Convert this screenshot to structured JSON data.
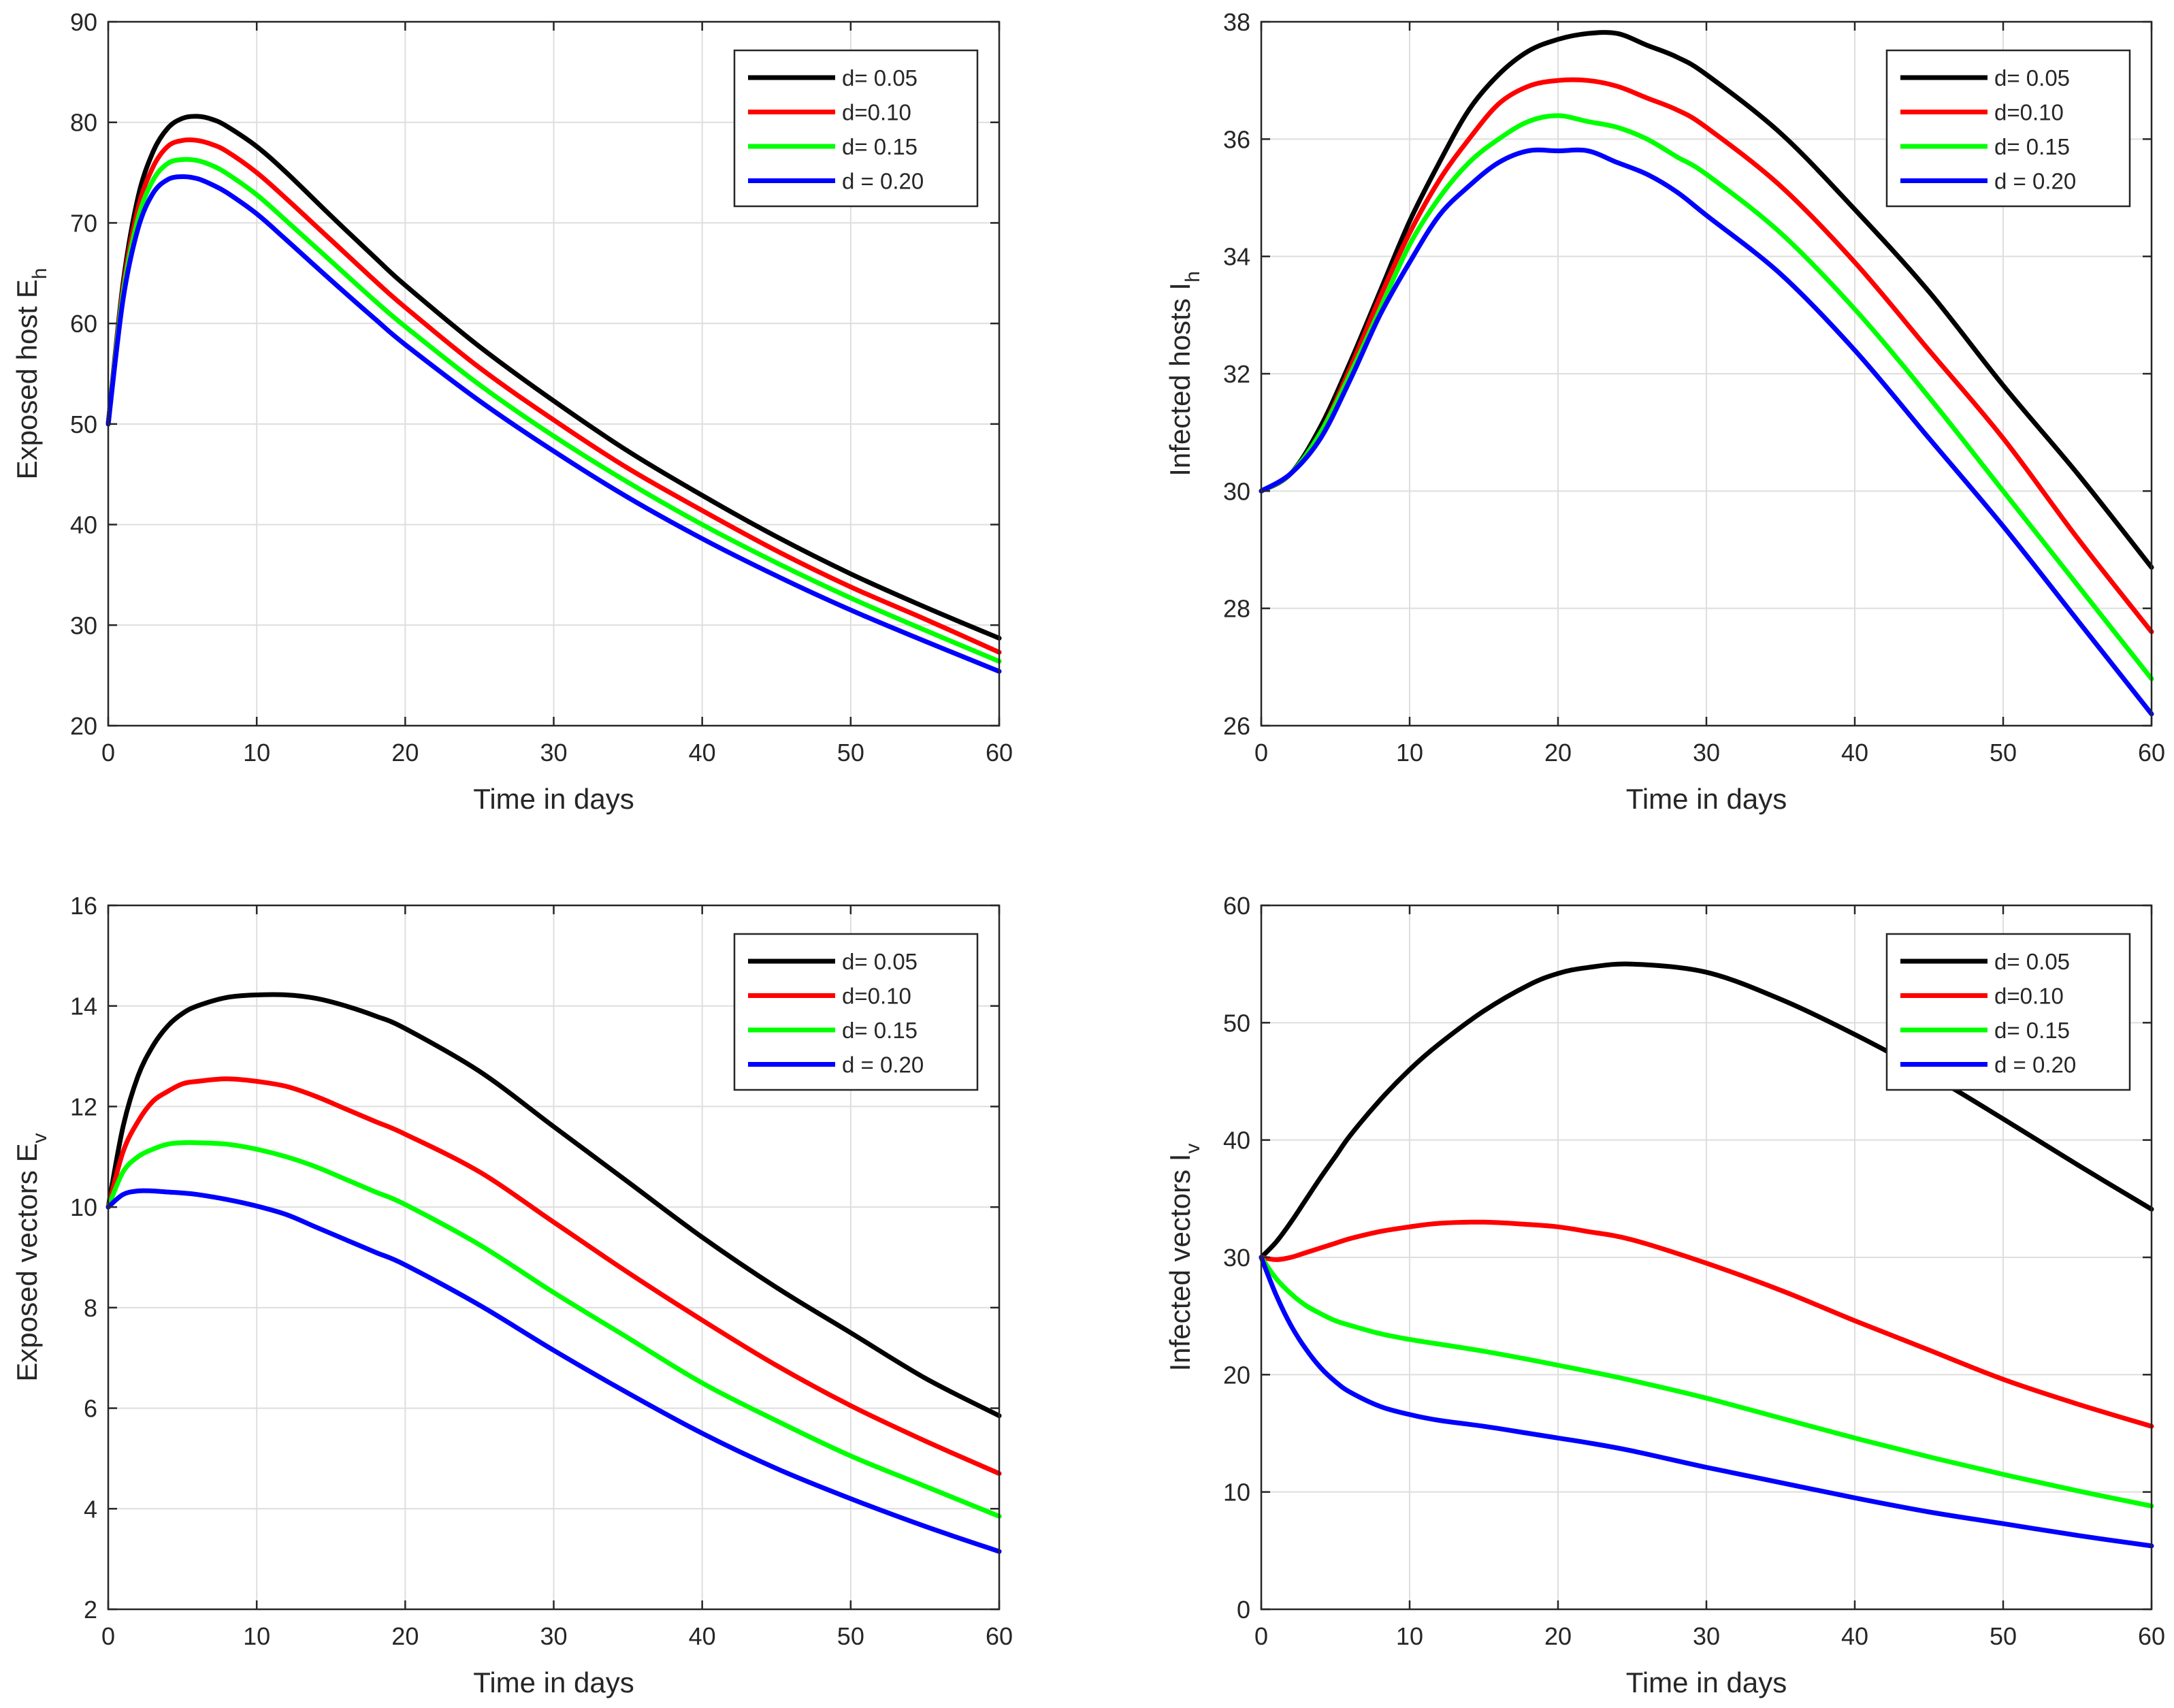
{
  "chart_data": [
    {
      "type": "line",
      "xlabel": "Time in days",
      "ylabel": "Exposed host E",
      "ylabel_sub": "h",
      "xlim": [
        0,
        60
      ],
      "ylim": [
        20,
        90
      ],
      "xticks": [
        0,
        10,
        20,
        30,
        40,
        50,
        60
      ],
      "yticks": [
        20,
        30,
        40,
        50,
        60,
        70,
        80,
        90
      ],
      "grid": true,
      "legend_position": "top-right",
      "x": [
        0,
        1,
        2,
        3,
        4,
        5,
        6,
        7,
        8,
        10,
        12,
        15,
        18,
        20,
        25,
        30,
        35,
        40,
        45,
        50,
        55,
        60
      ],
      "series": [
        {
          "name": "d= 0.05",
          "color": "#000000",
          "values": [
            50,
            64,
            72.5,
            77,
            79.4,
            80.4,
            80.6,
            80.3,
            79.6,
            77.6,
            75,
            70.7,
            66.5,
            63.8,
            57.7,
            52.3,
            47.3,
            42.9,
            38.8,
            35.1,
            31.8,
            28.7
          ]
        },
        {
          "name": "d=0.10",
          "color": "#ff0000",
          "values": [
            50,
            63.5,
            71.4,
            75.5,
            77.6,
            78.2,
            78.2,
            77.8,
            77.1,
            75,
            72.4,
            68.3,
            64.2,
            61.6,
            55.6,
            50.4,
            45.6,
            41.4,
            37.4,
            33.8,
            30.6,
            27.3
          ]
        },
        {
          "name": "d= 0.15",
          "color": "#00ff00",
          "values": [
            50,
            63,
            70.4,
            74.2,
            75.9,
            76.3,
            76.2,
            75.7,
            74.9,
            72.8,
            70.2,
            66.2,
            62.2,
            59.7,
            53.9,
            48.8,
            44.2,
            40,
            36.2,
            32.7,
            29.5,
            26.4
          ]
        },
        {
          "name": "d = 0.20",
          "color": "#0000ff",
          "values": [
            50,
            62.4,
            69.4,
            72.9,
            74.3,
            74.6,
            74.4,
            73.8,
            73,
            70.9,
            68.3,
            64.3,
            60.4,
            57.9,
            52.3,
            47.3,
            42.7,
            38.6,
            34.9,
            31.5,
            28.4,
            25.4
          ]
        }
      ]
    },
    {
      "type": "line",
      "xlabel": "Time in days",
      "ylabel": "Infected  hosts I",
      "ylabel_sub": "h",
      "xlim": [
        0,
        60
      ],
      "ylim": [
        26,
        38
      ],
      "xticks": [
        0,
        10,
        20,
        30,
        40,
        50,
        60
      ],
      "yticks": [
        26,
        28,
        30,
        32,
        34,
        36,
        38
      ],
      "grid": true,
      "legend_position": "top-right",
      "x": [
        0,
        2,
        4,
        6,
        8,
        10,
        12,
        14,
        16,
        18,
        20,
        22,
        24,
        26,
        28,
        30,
        35,
        40,
        45,
        50,
        55,
        60
      ],
      "series": [
        {
          "name": "d= 0.05",
          "color": "#000000",
          "values": [
            30,
            30.3,
            31.1,
            32.2,
            33.4,
            34.6,
            35.6,
            36.5,
            37.1,
            37.5,
            37.7,
            37.8,
            37.8,
            37.6,
            37.4,
            37.1,
            36.1,
            34.8,
            33.4,
            31.8,
            30.3,
            28.7
          ]
        },
        {
          "name": "d=0.10",
          "color": "#ff0000",
          "values": [
            30,
            30.3,
            31,
            32.1,
            33.3,
            34.4,
            35.3,
            36,
            36.6,
            36.9,
            37,
            37,
            36.9,
            36.7,
            36.5,
            36.2,
            35.2,
            33.9,
            32.4,
            30.9,
            29.2,
            27.6
          ]
        },
        {
          "name": "d= 0.15",
          "color": "#00ff00",
          "values": [
            30,
            30.3,
            31,
            32,
            33.1,
            34.2,
            35,
            35.6,
            36,
            36.3,
            36.4,
            36.3,
            36.2,
            36,
            35.7,
            35.4,
            34.4,
            33.1,
            31.6,
            30,
            28.4,
            26.8
          ]
        },
        {
          "name": "d = 0.20",
          "color": "#0000ff",
          "values": [
            30,
            30.3,
            30.9,
            31.9,
            33,
            33.9,
            34.7,
            35.2,
            35.6,
            35.8,
            35.8,
            35.8,
            35.6,
            35.4,
            35.1,
            34.7,
            33.7,
            32.4,
            30.9,
            29.4,
            27.8,
            26.2
          ]
        }
      ]
    },
    {
      "type": "line",
      "xlabel": "Time in days",
      "ylabel": "Exposed vectors E",
      "ylabel_sub": "v",
      "xlim": [
        0,
        60
      ],
      "ylim": [
        2,
        16
      ],
      "xticks": [
        0,
        10,
        20,
        30,
        40,
        50,
        60
      ],
      "yticks": [
        2,
        4,
        6,
        8,
        10,
        12,
        14,
        16
      ],
      "grid": true,
      "legend_position": "top-right",
      "x": [
        0,
        1,
        2,
        3,
        4,
        5,
        6,
        8,
        10,
        12,
        14,
        16,
        18,
        20,
        25,
        30,
        35,
        40,
        45,
        50,
        55,
        60
      ],
      "series": [
        {
          "name": "d= 0.05",
          "color": "#000000",
          "values": [
            10,
            11.6,
            12.6,
            13.2,
            13.6,
            13.85,
            14,
            14.17,
            14.22,
            14.22,
            14.15,
            14,
            13.8,
            13.55,
            12.7,
            11.6,
            10.5,
            9.4,
            8.4,
            7.5,
            6.6,
            5.85
          ]
        },
        {
          "name": "d=0.10",
          "color": "#ff0000",
          "values": [
            10,
            11.1,
            11.7,
            12.1,
            12.3,
            12.45,
            12.5,
            12.55,
            12.5,
            12.4,
            12.2,
            11.95,
            11.7,
            11.45,
            10.7,
            9.7,
            8.7,
            7.75,
            6.85,
            6.05,
            5.35,
            4.7
          ]
        },
        {
          "name": "d= 0.15",
          "color": "#00ff00",
          "values": [
            10,
            10.7,
            11,
            11.15,
            11.25,
            11.28,
            11.28,
            11.25,
            11.15,
            11,
            10.8,
            10.55,
            10.3,
            10.05,
            9.25,
            8.3,
            7.4,
            6.5,
            5.75,
            5.05,
            4.45,
            3.85
          ]
        },
        {
          "name": "d = 0.20",
          "color": "#0000ff",
          "values": [
            10,
            10.25,
            10.32,
            10.32,
            10.3,
            10.28,
            10.25,
            10.15,
            10.02,
            9.85,
            9.6,
            9.35,
            9.1,
            8.85,
            8.05,
            7.15,
            6.3,
            5.5,
            4.8,
            4.2,
            3.65,
            3.15
          ]
        }
      ]
    },
    {
      "type": "line",
      "xlabel": "Time in days",
      "ylabel": "Infected vectors I",
      "ylabel_sub": "v",
      "xlim": [
        0,
        60
      ],
      "ylim": [
        0,
        60
      ],
      "xticks": [
        0,
        10,
        20,
        30,
        40,
        50,
        60
      ],
      "yticks": [
        0,
        10,
        20,
        30,
        40,
        50,
        60
      ],
      "grid": true,
      "legend_position": "top-right",
      "x": [
        0,
        1,
        2,
        3,
        4,
        5,
        6,
        8,
        10,
        12,
        15,
        18,
        20,
        22,
        25,
        30,
        35,
        40,
        45,
        50,
        55,
        60
      ],
      "series": [
        {
          "name": "d= 0.05",
          "color": "#000000",
          "values": [
            30,
            31.3,
            33,
            34.9,
            36.8,
            38.6,
            40.4,
            43.4,
            46,
            48.2,
            51,
            53.2,
            54.2,
            54.7,
            55,
            54.3,
            52,
            49,
            45.6,
            41.8,
            37.9,
            34.1
          ]
        },
        {
          "name": "d=0.10",
          "color": "#ff0000",
          "values": [
            30,
            29.8,
            30,
            30.4,
            30.8,
            31.2,
            31.6,
            32.2,
            32.6,
            32.9,
            33,
            32.8,
            32.6,
            32.2,
            31.5,
            29.5,
            27.2,
            24.6,
            22.1,
            19.6,
            17.5,
            15.6
          ]
        },
        {
          "name": "d= 0.15",
          "color": "#00ff00",
          "values": [
            30,
            28.2,
            26.9,
            25.9,
            25.2,
            24.6,
            24.2,
            23.5,
            23,
            22.6,
            22,
            21.3,
            20.8,
            20.3,
            19.5,
            18,
            16.3,
            14.6,
            13.0,
            11.5,
            10.1,
            8.8
          ]
        },
        {
          "name": "d = 0.20",
          "color": "#0000ff",
          "values": [
            30,
            26.8,
            24.2,
            22.2,
            20.6,
            19.4,
            18.5,
            17.3,
            16.6,
            16.1,
            15.6,
            15,
            14.6,
            14.2,
            13.5,
            12.1,
            10.8,
            9.5,
            8.3,
            7.3,
            6.3,
            5.4
          ]
        }
      ]
    }
  ]
}
